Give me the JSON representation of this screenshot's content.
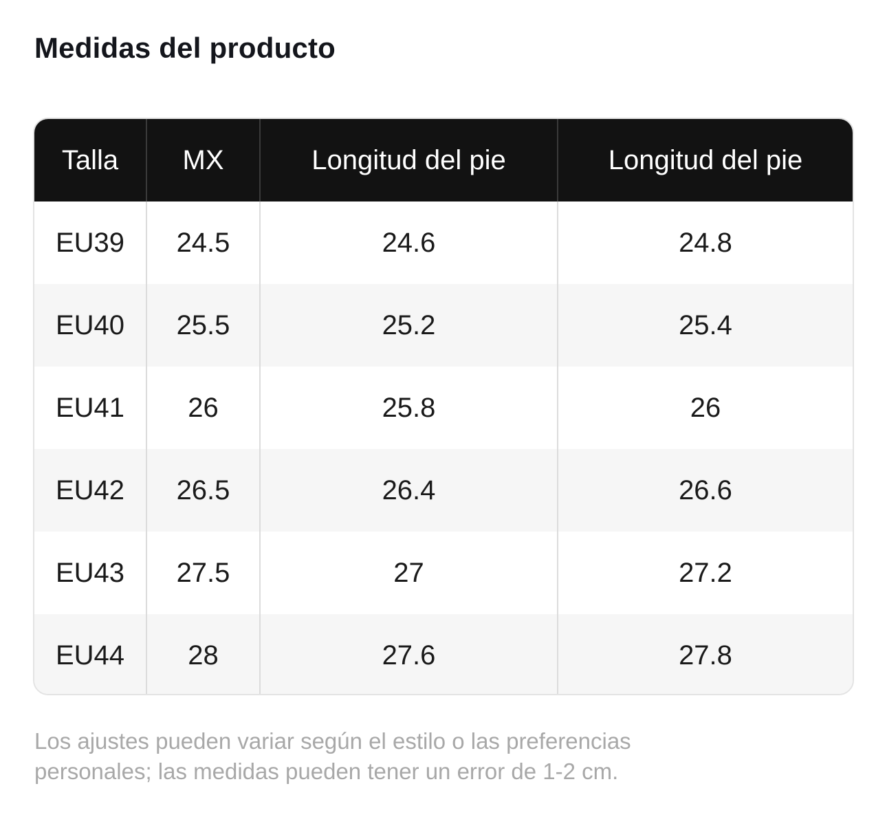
{
  "title": "Medidas del producto",
  "table": {
    "headers": [
      "Talla",
      "MX",
      "Longitud del pie",
      "Longitud del pie"
    ],
    "rows": [
      [
        "EU39",
        "24.5",
        "24.6",
        "24.8"
      ],
      [
        "EU40",
        "25.5",
        "25.2",
        "25.4"
      ],
      [
        "EU41",
        "26",
        "25.8",
        "26"
      ],
      [
        "EU42",
        "26.5",
        "26.4",
        "26.6"
      ],
      [
        "EU43",
        "27.5",
        "27",
        "27.2"
      ],
      [
        "EU44",
        "28",
        "27.6",
        "27.8"
      ]
    ]
  },
  "note": {
    "line1": "Los ajustes pueden variar según el estilo o las preferencias",
    "line2": "personales; las medidas pueden tener un error de 1-2 cm."
  },
  "colors": {
    "header_bg": "#121212",
    "header_text": "#ffffff",
    "row_alt_bg": "#f6f6f6",
    "note_text": "#a8a8a8"
  }
}
